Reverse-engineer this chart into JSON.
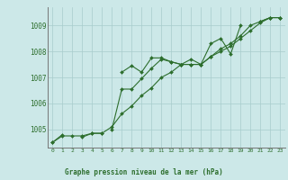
{
  "title": "Graphe pression niveau de la mer (hPa)",
  "background_color": "#cce8e8",
  "grid_color": "#a8cccc",
  "line_color": "#2d6e2d",
  "xlim": [
    -0.5,
    23.5
  ],
  "ylim": [
    1004.3,
    1009.7
  ],
  "yticks": [
    1005,
    1006,
    1007,
    1008,
    1009
  ],
  "xticks": [
    0,
    1,
    2,
    3,
    4,
    5,
    6,
    7,
    8,
    9,
    10,
    11,
    12,
    13,
    14,
    15,
    16,
    17,
    18,
    19,
    20,
    21,
    22,
    23
  ],
  "series1": [
    1004.5,
    1004.8,
    null,
    1004.7,
    1004.85,
    1004.85,
    null,
    1007.2,
    1007.45,
    1007.2,
    1007.75,
    1007.75,
    1007.6,
    1007.5,
    1007.5,
    1007.5,
    1008.3,
    1008.5,
    1007.9,
    1009.0,
    null,
    1009.15,
    1009.3,
    1009.3
  ],
  "series2": [
    1004.5,
    1004.75,
    1004.75,
    1004.75,
    1004.85,
    1004.85,
    1005.1,
    1005.6,
    1005.9,
    1006.3,
    1006.6,
    1007.0,
    1007.2,
    1007.5,
    1007.7,
    1007.5,
    1007.8,
    1008.1,
    1008.3,
    1008.6,
    1009.0,
    1009.15,
    1009.3,
    1009.3
  ],
  "series3": [
    null,
    null,
    null,
    null,
    null,
    null,
    1005.0,
    1006.55,
    1006.55,
    1006.95,
    1007.35,
    1007.7,
    1007.6,
    1007.5,
    1007.5,
    1007.5,
    1007.8,
    1008.0,
    1008.2,
    1008.5,
    1008.8,
    1009.1,
    1009.3,
    1009.3
  ]
}
